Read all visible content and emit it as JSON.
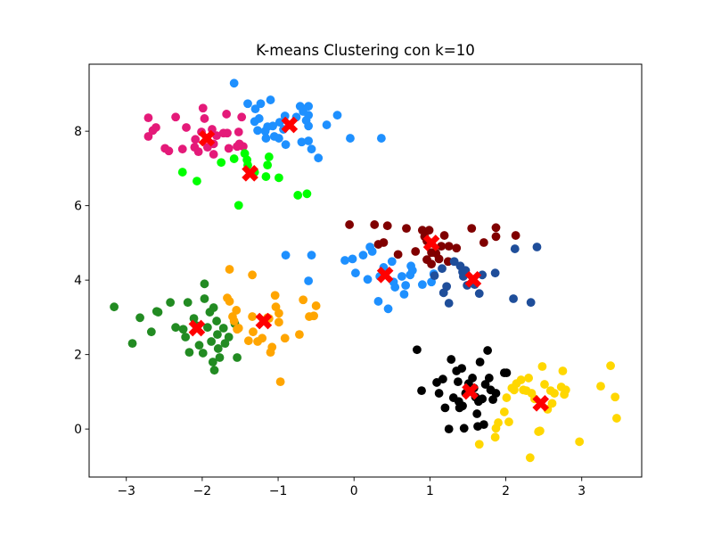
{
  "chart_data": {
    "type": "scatter",
    "title": "K-means Clustering con k=10",
    "xlim": [
      -3.49,
      3.79
    ],
    "ylim": [
      -1.29,
      9.8
    ],
    "xticks": [
      -3,
      -2,
      -1,
      0,
      1,
      2,
      3
    ],
    "xtick_labels": [
      "−3",
      "−2",
      "−1",
      "0",
      "1",
      "2",
      "3"
    ],
    "yticks": [
      0,
      2,
      4,
      6,
      8
    ],
    "ytick_labels": [
      "0",
      "2",
      "4",
      "6",
      "8"
    ],
    "grid": false,
    "legend": "none",
    "centroid_marker": {
      "shape": "X",
      "color": "#ff0000"
    },
    "series": [
      {
        "color": "#e41a79",
        "centroid": [
          -1.94,
          7.81
        ],
        "points": [
          [
            -2.71,
            8.36
          ],
          [
            -2.65,
            8.02
          ],
          [
            -2.61,
            8.1
          ],
          [
            -2.71,
            7.86
          ],
          [
            -2.49,
            7.54
          ],
          [
            -2.44,
            7.47
          ],
          [
            -2.35,
            8.38
          ],
          [
            -2.21,
            8.1
          ],
          [
            -2.1,
            7.57
          ],
          [
            -2.05,
            7.45
          ],
          [
            -1.99,
            8.62
          ],
          [
            -1.97,
            8.34
          ],
          [
            -1.87,
            8.05
          ],
          [
            -1.85,
            7.66
          ],
          [
            -1.85,
            7.38
          ],
          [
            -1.72,
            7.95
          ],
          [
            -1.67,
            7.95
          ],
          [
            -1.65,
            7.54
          ],
          [
            -1.54,
            7.59
          ],
          [
            -1.52,
            7.98
          ],
          [
            -1.51,
            7.66
          ],
          [
            -1.48,
            8.38
          ],
          [
            -1.46,
            7.59
          ],
          [
            -2.01,
            7.98
          ],
          [
            -2.09,
            7.78
          ],
          [
            -2.26,
            7.52
          ],
          [
            -1.68,
            8.46
          ],
          [
            -1.81,
            7.88
          ],
          [
            -1.93,
            7.57
          ]
        ]
      },
      {
        "color": "#1e90ff",
        "centroid": [
          -0.85,
          8.17
        ],
        "points": [
          [
            -1.58,
            9.29
          ],
          [
            -1.4,
            8.74
          ],
          [
            -1.23,
            8.74
          ],
          [
            -1.3,
            8.6
          ],
          [
            -1.25,
            8.34
          ],
          [
            -1.17,
            8.0
          ],
          [
            -1.1,
            8.84
          ],
          [
            -1.07,
            8.14
          ],
          [
            -1.05,
            7.86
          ],
          [
            -0.98,
            8.24
          ],
          [
            -0.93,
            8.05
          ],
          [
            -1.16,
            7.81
          ],
          [
            -0.99,
            7.81
          ],
          [
            -0.91,
            8.41
          ],
          [
            -1.27,
            8.02
          ],
          [
            -1.31,
            8.26
          ],
          [
            -0.76,
            8.38
          ],
          [
            -0.71,
            8.67
          ],
          [
            -0.67,
            8.53
          ],
          [
            -0.63,
            8.29
          ],
          [
            -0.6,
            8.67
          ],
          [
            -0.6,
            8.43
          ],
          [
            -0.6,
            8.14
          ],
          [
            -0.6,
            7.74
          ],
          [
            -0.69,
            7.71
          ],
          [
            -0.56,
            7.52
          ],
          [
            -0.47,
            7.28
          ],
          [
            -0.36,
            8.17
          ],
          [
            -0.22,
            8.43
          ],
          [
            -0.05,
            7.81
          ],
          [
            0.36,
            7.81
          ],
          [
            -0.9,
            7.64
          ],
          [
            -1.14,
            8.12
          ]
        ]
      },
      {
        "color": "#00ff00",
        "centroid": [
          -1.37,
          6.87
        ],
        "points": [
          [
            -1.44,
            7.4
          ],
          [
            -1.41,
            7.23
          ],
          [
            -1.4,
            7.09
          ],
          [
            -1.58,
            7.26
          ],
          [
            -1.75,
            7.16
          ],
          [
            -2.26,
            6.9
          ],
          [
            -2.07,
            6.66
          ],
          [
            -1.16,
            6.78
          ],
          [
            -1.14,
            7.09
          ],
          [
            -1.12,
            7.31
          ],
          [
            -0.99,
            6.75
          ],
          [
            -0.74,
            6.28
          ],
          [
            -0.62,
            6.32
          ],
          [
            -1.52,
            6.01
          ],
          [
            -1.31,
            6.9
          ]
        ]
      },
      {
        "color": "#800000",
        "centroid": [
          1.02,
          5.0
        ],
        "points": [
          [
            -0.06,
            5.49
          ],
          [
            0.27,
            5.49
          ],
          [
            0.44,
            5.46
          ],
          [
            0.32,
            4.96
          ],
          [
            0.39,
            5.01
          ],
          [
            0.58,
            4.69
          ],
          [
            0.69,
            5.39
          ],
          [
            0.81,
            4.77
          ],
          [
            0.9,
            5.34
          ],
          [
            0.93,
            5.17
          ],
          [
            0.96,
            5.05
          ],
          [
            0.96,
            4.55
          ],
          [
            1.02,
            4.74
          ],
          [
            1.02,
            4.43
          ],
          [
            1.08,
            4.72
          ],
          [
            1.12,
            4.57
          ],
          [
            1.15,
            4.91
          ],
          [
            1.19,
            5.2
          ],
          [
            1.24,
            4.5
          ],
          [
            1.35,
            4.86
          ],
          [
            1.55,
            5.39
          ],
          [
            1.71,
            5.01
          ],
          [
            1.87,
            5.41
          ],
          [
            1.87,
            5.17
          ],
          [
            2.13,
            5.2
          ],
          [
            0.99,
            5.34
          ],
          [
            1.25,
            4.91
          ]
        ]
      },
      {
        "color": "#1e90ff",
        "centroid": [
          0.41,
          4.14
        ],
        "points": [
          [
            -0.9,
            4.67
          ],
          [
            -0.6,
            3.98
          ],
          [
            -0.56,
            4.67
          ],
          [
            -0.12,
            4.53
          ],
          [
            -0.02,
            4.57
          ],
          [
            0.02,
            4.19
          ],
          [
            0.21,
            4.89
          ],
          [
            0.24,
            4.77
          ],
          [
            0.18,
            4.02
          ],
          [
            0.32,
            3.43
          ],
          [
            0.34,
            4.1
          ],
          [
            0.39,
            4.34
          ],
          [
            0.45,
            3.23
          ],
          [
            0.5,
            4.5
          ],
          [
            0.52,
            3.95
          ],
          [
            0.54,
            3.81
          ],
          [
            0.63,
            4.1
          ],
          [
            0.66,
            3.62
          ],
          [
            0.74,
            4.14
          ],
          [
            0.75,
            4.38
          ],
          [
            0.77,
            4.26
          ],
          [
            0.9,
            3.88
          ],
          [
            1.05,
            4.17
          ],
          [
            1.02,
            3.95
          ],
          [
            0.12,
            4.67
          ],
          [
            0.68,
            3.86
          ]
        ]
      },
      {
        "color": "#1f4e9a",
        "centroid": [
          1.57,
          4.02
        ],
        "points": [
          [
            1.06,
            4.12
          ],
          [
            1.16,
            4.31
          ],
          [
            1.32,
            4.5
          ],
          [
            1.4,
            4.38
          ],
          [
            1.43,
            4.22
          ],
          [
            1.47,
            4.26
          ],
          [
            1.22,
            3.83
          ],
          [
            1.18,
            3.66
          ],
          [
            1.25,
            3.38
          ],
          [
            1.49,
            3.86
          ],
          [
            1.59,
            3.88
          ],
          [
            1.65,
            3.64
          ],
          [
            1.69,
            4.14
          ],
          [
            1.86,
            4.19
          ],
          [
            2.1,
            3.5
          ],
          [
            2.33,
            3.4
          ],
          [
            2.41,
            4.89
          ],
          [
            2.12,
            4.84
          ],
          [
            1.44,
            4.1
          ]
        ]
      },
      {
        "color": "#228b22",
        "centroid": [
          -2.07,
          2.71
        ],
        "points": [
          [
            -3.16,
            3.28
          ],
          [
            -2.82,
            2.99
          ],
          [
            -2.67,
            2.61
          ],
          [
            -2.6,
            3.16
          ],
          [
            -2.58,
            3.14
          ],
          [
            -2.42,
            3.4
          ],
          [
            -2.25,
            2.68
          ],
          [
            -2.22,
            2.47
          ],
          [
            -2.19,
            3.4
          ],
          [
            -2.17,
            2.06
          ],
          [
            -2.11,
            2.97
          ],
          [
            -2.08,
            2.78
          ],
          [
            -2.04,
            2.25
          ],
          [
            -1.99,
            2.04
          ],
          [
            -1.97,
            3.9
          ],
          [
            -1.97,
            3.5
          ],
          [
            -1.93,
            2.73
          ],
          [
            -1.9,
            3.14
          ],
          [
            -1.88,
            2.35
          ],
          [
            -1.86,
            1.8
          ],
          [
            -1.85,
            3.26
          ],
          [
            -1.81,
            2.9
          ],
          [
            -1.8,
            2.54
          ],
          [
            -1.79,
            2.16
          ],
          [
            -1.77,
            1.92
          ],
          [
            -1.72,
            2.71
          ],
          [
            -1.7,
            2.3
          ],
          [
            -1.65,
            2.47
          ],
          [
            -1.57,
            2.83
          ],
          [
            -1.54,
            1.92
          ],
          [
            -2.92,
            2.3
          ],
          [
            -1.84,
            1.58
          ],
          [
            -2.35,
            2.73
          ]
        ]
      },
      {
        "color": "#ffa500",
        "centroid": [
          -1.19,
          2.9
        ],
        "points": [
          [
            -1.64,
            4.29
          ],
          [
            -1.67,
            3.52
          ],
          [
            -1.64,
            3.43
          ],
          [
            -1.6,
            3.02
          ],
          [
            -1.58,
            2.9
          ],
          [
            -1.55,
            3.19
          ],
          [
            -1.54,
            2.68
          ],
          [
            -1.34,
            4.14
          ],
          [
            -1.34,
            3.02
          ],
          [
            -1.33,
            2.61
          ],
          [
            -1.27,
            2.35
          ],
          [
            -1.21,
            2.44
          ],
          [
            -1.14,
            2.99
          ],
          [
            -1.12,
            2.97
          ],
          [
            -1.1,
            2.06
          ],
          [
            -1.08,
            2.2
          ],
          [
            -1.04,
            3.59
          ],
          [
            -1.03,
            3.28
          ],
          [
            -0.99,
            2.87
          ],
          [
            -0.97,
            1.27
          ],
          [
            -0.91,
            2.44
          ],
          [
            -0.72,
            2.54
          ],
          [
            -0.67,
            3.47
          ],
          [
            -0.59,
            3.02
          ],
          [
            -0.53,
            3.04
          ],
          [
            -0.5,
            3.31
          ],
          [
            -0.99,
            3.11
          ],
          [
            -1.52,
            2.71
          ],
          [
            -1.39,
            2.37
          ]
        ]
      },
      {
        "color": "#000000",
        "centroid": [
          1.53,
          1.01
        ],
        "points": [
          [
            0.83,
            2.13
          ],
          [
            0.89,
            1.03
          ],
          [
            1.09,
            1.25
          ],
          [
            1.12,
            0.96
          ],
          [
            1.17,
            1.34
          ],
          [
            1.2,
            0.57
          ],
          [
            1.25,
            0.0
          ],
          [
            1.28,
            1.87
          ],
          [
            1.35,
            1.56
          ],
          [
            1.37,
            1.27
          ],
          [
            1.38,
            0.74
          ],
          [
            1.39,
            0.57
          ],
          [
            1.42,
            1.63
          ],
          [
            1.47,
            0.96
          ],
          [
            1.51,
            1.22
          ],
          [
            1.56,
            1.37
          ],
          [
            1.58,
            1.1
          ],
          [
            1.6,
            0.86
          ],
          [
            1.62,
            0.41
          ],
          [
            1.64,
            0.74
          ],
          [
            1.66,
            1.8
          ],
          [
            1.69,
            0.81
          ],
          [
            1.71,
            0.12
          ],
          [
            1.73,
            1.2
          ],
          [
            1.76,
            2.11
          ],
          [
            1.78,
            1.37
          ],
          [
            1.8,
            1.05
          ],
          [
            1.83,
            0.79
          ],
          [
            1.87,
            0.96
          ],
          [
            1.98,
            1.51
          ],
          [
            2.01,
            1.51
          ],
          [
            1.45,
            0.02
          ],
          [
            1.63,
            0.07
          ],
          [
            1.43,
            0.62
          ],
          [
            1.31,
            0.84
          ]
        ]
      },
      {
        "color": "#ffd700",
        "centroid": [
          2.46,
          0.69
        ],
        "points": [
          [
            1.65,
            -0.41
          ],
          [
            1.9,
            0.17
          ],
          [
            1.98,
            0.46
          ],
          [
            2.01,
            0.84
          ],
          [
            2.04,
            0.19
          ],
          [
            2.08,
            1.1
          ],
          [
            2.11,
            1.05
          ],
          [
            2.14,
            1.22
          ],
          [
            2.2,
            1.32
          ],
          [
            2.23,
            1.05
          ],
          [
            2.27,
            1.03
          ],
          [
            2.3,
            1.37
          ],
          [
            2.32,
            -0.77
          ],
          [
            2.34,
            0.96
          ],
          [
            2.38,
            0.81
          ],
          [
            2.43,
            -0.07
          ],
          [
            2.45,
            -0.05
          ],
          [
            2.48,
            1.68
          ],
          [
            2.51,
            1.2
          ],
          [
            2.55,
            0.53
          ],
          [
            2.59,
            1.03
          ],
          [
            2.64,
            0.96
          ],
          [
            2.73,
            1.13
          ],
          [
            2.75,
            1.56
          ],
          [
            2.77,
            0.93
          ],
          [
            2.79,
            1.05
          ],
          [
            2.97,
            -0.34
          ],
          [
            3.25,
            1.15
          ],
          [
            3.38,
            1.7
          ],
          [
            3.44,
            0.86
          ],
          [
            3.46,
            0.29
          ],
          [
            1.87,
            0.02
          ],
          [
            1.86,
            -0.22
          ],
          [
            2.61,
            0.69
          ]
        ]
      }
    ]
  }
}
